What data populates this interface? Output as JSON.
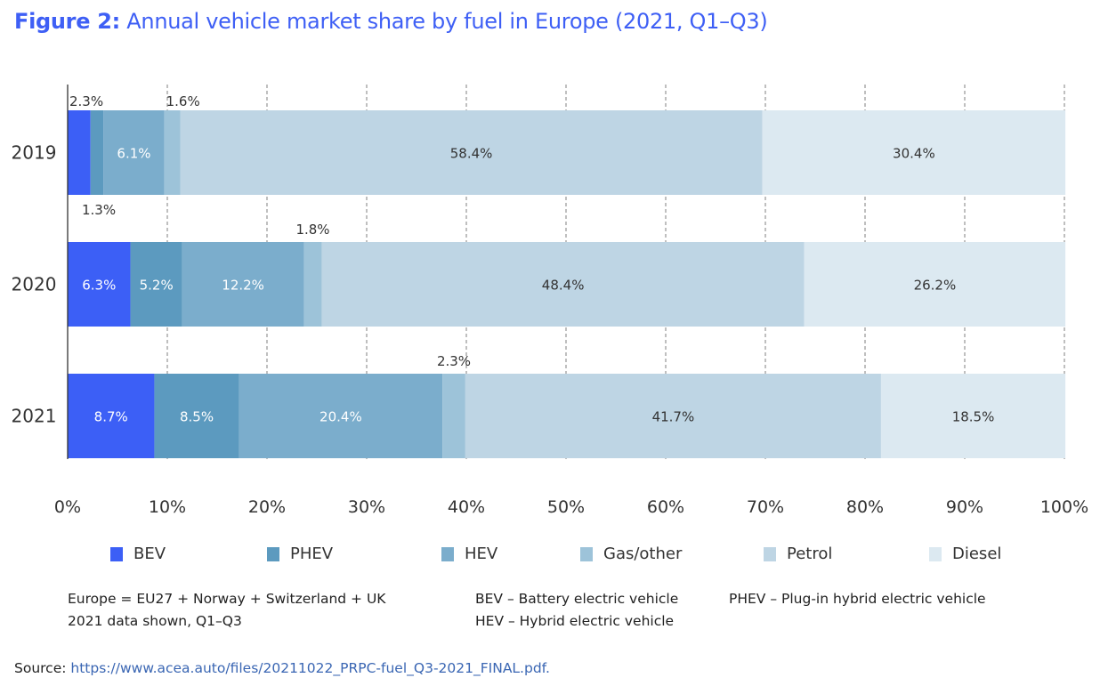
{
  "title": {
    "prefix": "Figure 2:",
    "text": "Annual vehicle market share by fuel in Europe (2021, Q1–Q3)"
  },
  "chart_data": {
    "type": "bar",
    "orientation": "horizontal",
    "stacked": true,
    "title": "Annual vehicle market share by fuel in Europe (2021, Q1–Q3)",
    "xlabel": "",
    "ylabel": "",
    "xlim": [
      0,
      100
    ],
    "x_ticks": [
      "0%",
      "10%",
      "20%",
      "30%",
      "40%",
      "50%",
      "60%",
      "70%",
      "80%",
      "90%",
      "100%"
    ],
    "grid": "vertical dashed",
    "legend_position": "bottom",
    "categories": [
      "2019",
      "2020",
      "2021"
    ],
    "series": [
      {
        "name": "BEV",
        "color": "#3c5ff6",
        "values": [
          2.3,
          6.3,
          8.7
        ],
        "labels": [
          "2.3%",
          "6.3%",
          "8.7%"
        ]
      },
      {
        "name": "PHEV",
        "color": "#5c9abf",
        "values": [
          1.3,
          5.2,
          8.5
        ],
        "labels": [
          "1.3%",
          "5.2%",
          "8.5%"
        ]
      },
      {
        "name": "HEV",
        "color": "#7badcc",
        "values": [
          6.1,
          12.2,
          20.4
        ],
        "labels": [
          "6.1%",
          "12.2%",
          "20.4%"
        ]
      },
      {
        "name": "Gas/other",
        "color": "#9dc3d9",
        "values": [
          1.6,
          1.8,
          2.3
        ],
        "labels": [
          "1.6%",
          "1.8%",
          "2.3%"
        ]
      },
      {
        "name": "Petrol",
        "color": "#bed5e4",
        "values": [
          58.4,
          48.4,
          41.7
        ],
        "labels": [
          "58.4%",
          "48.4%",
          "41.7%"
        ]
      },
      {
        "name": "Diesel",
        "color": "#dce9f1",
        "values": [
          30.4,
          26.2,
          18.5
        ],
        "labels": [
          "30.4%",
          "26.2%",
          "18.5%"
        ]
      }
    ]
  },
  "notes": {
    "europe_def": "Europe = EU27 + Norway + Switzerland + UK",
    "data_shown": "2021 data shown, Q1–Q3",
    "bev_def": "BEV – Battery electric vehicle",
    "hev_def": "HEV – Hybrid electric vehicle",
    "phev_def": "PHEV – Plug-in hybrid electric vehicle"
  },
  "source": {
    "label": "Source:",
    "link": "https://www.acea.auto/files/20211022_PRPC-fuel_Q3-2021_FINAL.pdf."
  }
}
